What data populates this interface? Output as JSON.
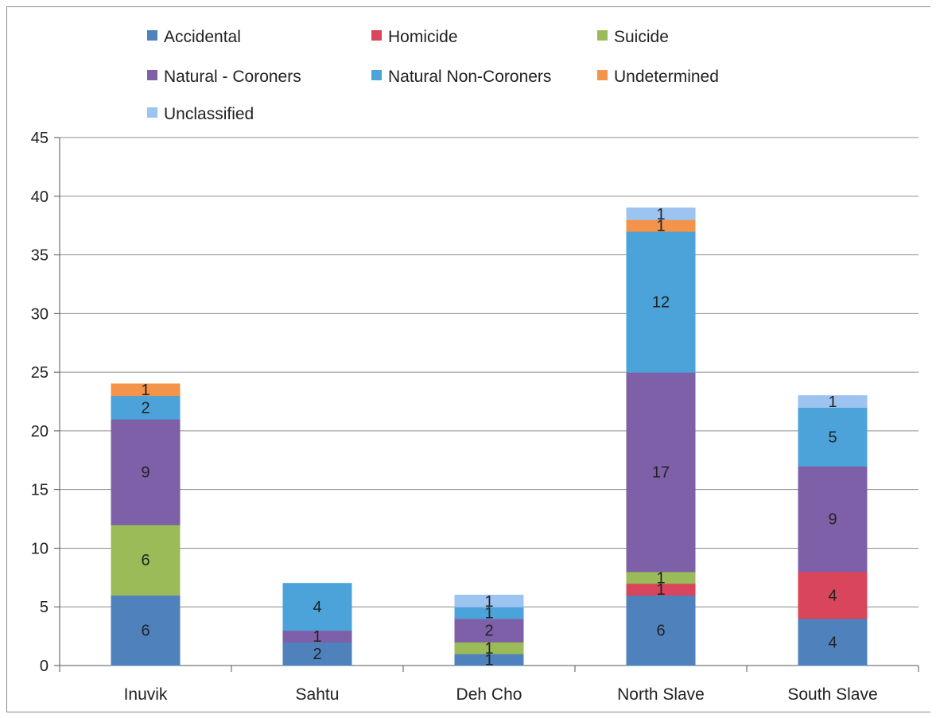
{
  "chart_data": {
    "type": "bar",
    "stacked": true,
    "title": "",
    "xlabel": "",
    "ylabel": "",
    "ylim": [
      0,
      45
    ],
    "yticks": [
      "0",
      "5",
      "10",
      "15",
      "20",
      "25",
      "30",
      "35",
      "40",
      "45"
    ],
    "grid": true,
    "legend_position": "top",
    "categories": [
      "Inuvik",
      "Sahtu",
      "Deh Cho",
      "North Slave",
      "South Slave"
    ],
    "series": [
      {
        "name": "Accidental",
        "color": "#4F81BD",
        "values": [
          6,
          2,
          1,
          6,
          4
        ]
      },
      {
        "name": "Homicide",
        "color": "#D9455A",
        "values": [
          0,
          0,
          0,
          1,
          4
        ]
      },
      {
        "name": "Suicide",
        "color": "#9BBB59",
        "values": [
          6,
          0,
          1,
          1,
          0
        ]
      },
      {
        "name": "Natural  - Coroners",
        "color": "#7E60A8",
        "values": [
          9,
          1,
          2,
          17,
          9
        ]
      },
      {
        "name": "Natural Non-Coroners",
        "color": "#4BA3D9",
        "values": [
          2,
          4,
          1,
          12,
          5
        ]
      },
      {
        "name": "Undetermined",
        "color": "#F4934A",
        "values": [
          1,
          0,
          0,
          1,
          0
        ]
      },
      {
        "name": "Unclassified",
        "color": "#9DC3F0",
        "values": [
          0,
          0,
          1,
          1,
          1
        ]
      }
    ]
  }
}
